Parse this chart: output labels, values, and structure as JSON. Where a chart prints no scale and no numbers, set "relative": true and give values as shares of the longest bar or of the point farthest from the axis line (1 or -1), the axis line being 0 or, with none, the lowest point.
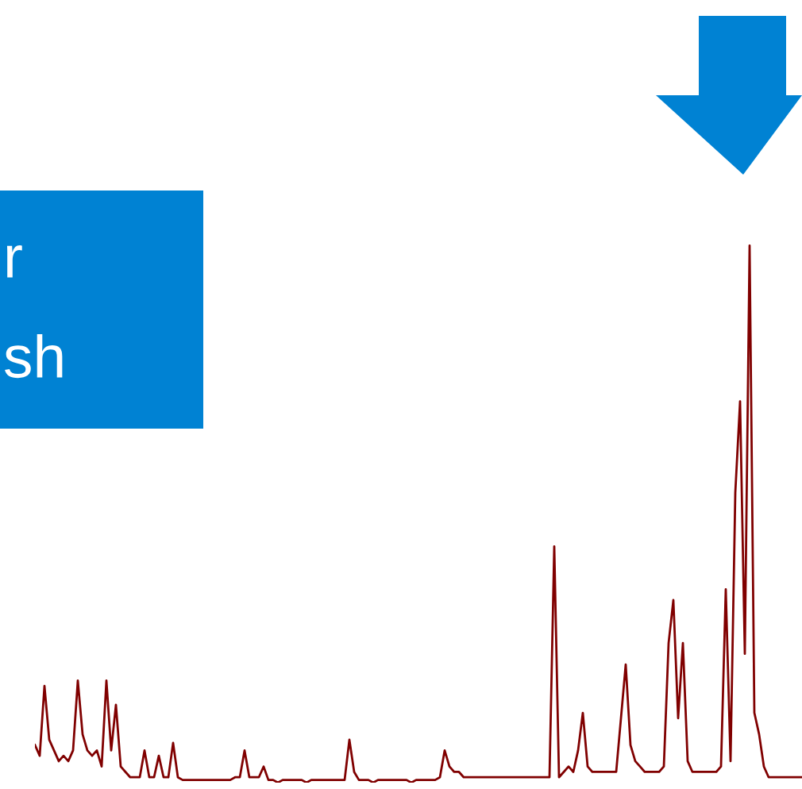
{
  "chart_data": {
    "type": "line",
    "relative": true,
    "categories": [
      null,
      null,
      null,
      null,
      null,
      null,
      null,
      null,
      null,
      null,
      null,
      null,
      null,
      null,
      null,
      null,
      null,
      null,
      null,
      null,
      null,
      null,
      null,
      null,
      null,
      null,
      null,
      null,
      null,
      null,
      null,
      null,
      null,
      null,
      null,
      null,
      null,
      null,
      null,
      null,
      null,
      null,
      null,
      null,
      null,
      null,
      null,
      null,
      null,
      null,
      null,
      null,
      null,
      null,
      null,
      null,
      null,
      null,
      null,
      null,
      null,
      null,
      null,
      null,
      null,
      null,
      null,
      null,
      null,
      null,
      null,
      null,
      null,
      null,
      null,
      null,
      null,
      null,
      null,
      null,
      null,
      null,
      null,
      null,
      null,
      null,
      null,
      null,
      null,
      null,
      null,
      null,
      null,
      null,
      null,
      null,
      null,
      null,
      null,
      null,
      null,
      null,
      null,
      null,
      null,
      null,
      null,
      null,
      null,
      null,
      null,
      null,
      null,
      null,
      null,
      null,
      null,
      null,
      null,
      null,
      null,
      null,
      null,
      null,
      null,
      null,
      null,
      null,
      null,
      null,
      null,
      null,
      null,
      null,
      null,
      null,
      null,
      null,
      null,
      null,
      null,
      null,
      null,
      null,
      null,
      null,
      null,
      null,
      null,
      null,
      null,
      null,
      null,
      null,
      null,
      null,
      null,
      null,
      null,
      null,
      null,
      null
    ],
    "series": [
      {
        "color": "#800000",
        "values": [
          0.07,
          0.05,
          0.18,
          0.08,
          0.06,
          0.04,
          0.05,
          0.04,
          0.06,
          0.19,
          0.09,
          0.06,
          0.05,
          0.06,
          0.03,
          0.19,
          0.06,
          0.145,
          0.03,
          0.02,
          0.01,
          0.01,
          0.01,
          0.06,
          0.01,
          0.01,
          0.05,
          0.01,
          0.01,
          0.074,
          0.01,
          0.005,
          0.005,
          0.005,
          0.005,
          0.005,
          0.005,
          0.005,
          0.005,
          0.005,
          0.005,
          0.005,
          0.01,
          0.01,
          0.06,
          0.01,
          0.01,
          0.01,
          0.03,
          0.005,
          0.005,
          0,
          0.005,
          0.005,
          0.005,
          0.005,
          0.005,
          0,
          0.005,
          0.005,
          0.005,
          0.005,
          0.005,
          0.005,
          0.005,
          0.005,
          0.08,
          0.02,
          0.005,
          0.005,
          0.005,
          0,
          0.005,
          0.005,
          0.005,
          0.005,
          0.005,
          0.005,
          0.005,
          0,
          0.005,
          0.005,
          0.005,
          0.005,
          0.005,
          0.01,
          0.06,
          0.03,
          0.02,
          0.02,
          0.01,
          0.01,
          0.01,
          0.01,
          0.01,
          0.01,
          0.01,
          0.01,
          0.01,
          0.01,
          0.01,
          0.01,
          0.01,
          0.01,
          0.01,
          0.01,
          0.01,
          0.01,
          0.01,
          0.44,
          0.01,
          0.02,
          0.03,
          0.02,
          0.06,
          0.13,
          0.03,
          0.02,
          0.02,
          0.02,
          0.02,
          0.02,
          0.02,
          0.12,
          0.22,
          0.07,
          0.04,
          0.03,
          0.02,
          0.02,
          0.02,
          0.02,
          0.03,
          0.26,
          0.34,
          0.12,
          0.26,
          0.04,
          0.02,
          0.02,
          0.02,
          0.02,
          0.02,
          0.02,
          0.03,
          0.36,
          0.04,
          0.54,
          0.71,
          0.24,
          1,
          0.13,
          0.09,
          0.03,
          0.01,
          0.01,
          0.01,
          0.01,
          0.01,
          0.01,
          0.01,
          0.01
        ]
      }
    ],
    "annotations": [
      "r",
      "sh"
    ]
  }
}
